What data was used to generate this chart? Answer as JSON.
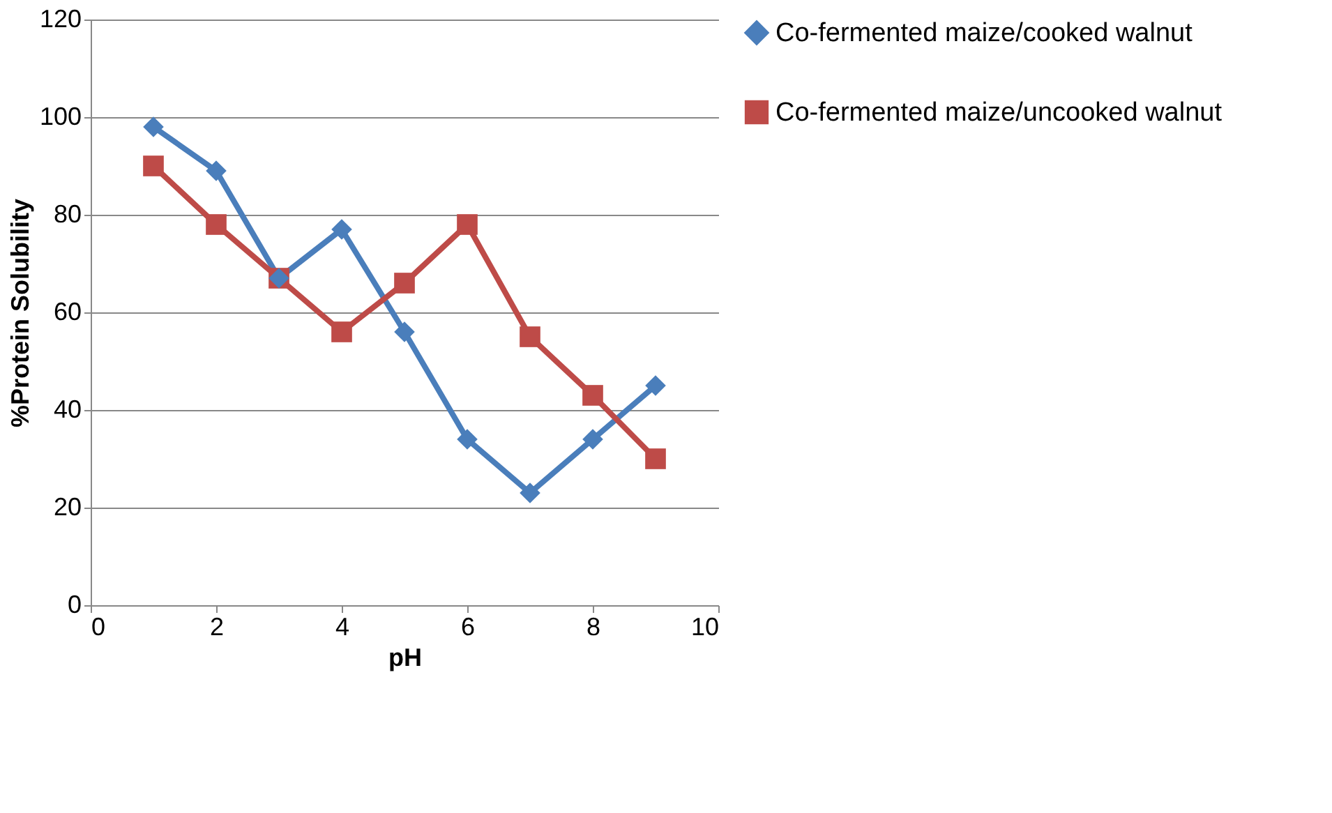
{
  "chart_data": {
    "type": "line",
    "xlabel": "pH",
    "ylabel": "%Protein Solubility",
    "x": [
      1,
      2,
      3,
      4,
      5,
      6,
      7,
      8,
      9
    ],
    "series": [
      {
        "name": "Co-fermented maize/cooked walnut",
        "color": "#4a7ebb",
        "marker": "diamond",
        "values": [
          98,
          89,
          67,
          77,
          56,
          34,
          23,
          34,
          45
        ]
      },
      {
        "name": "Co-fermented maize/uncooked walnut",
        "color": "#be4b48",
        "marker": "square",
        "values": [
          90,
          78,
          67,
          56,
          66,
          78,
          55,
          43,
          30
        ]
      }
    ],
    "xlim": [
      0,
      10
    ],
    "xticks": [
      0,
      2,
      4,
      6,
      8,
      10
    ],
    "ylim": [
      0,
      120
    ],
    "yticks": [
      0,
      20,
      40,
      60,
      80,
      100,
      120
    ],
    "grid": "y",
    "legend": "right",
    "line_style": "solid"
  }
}
